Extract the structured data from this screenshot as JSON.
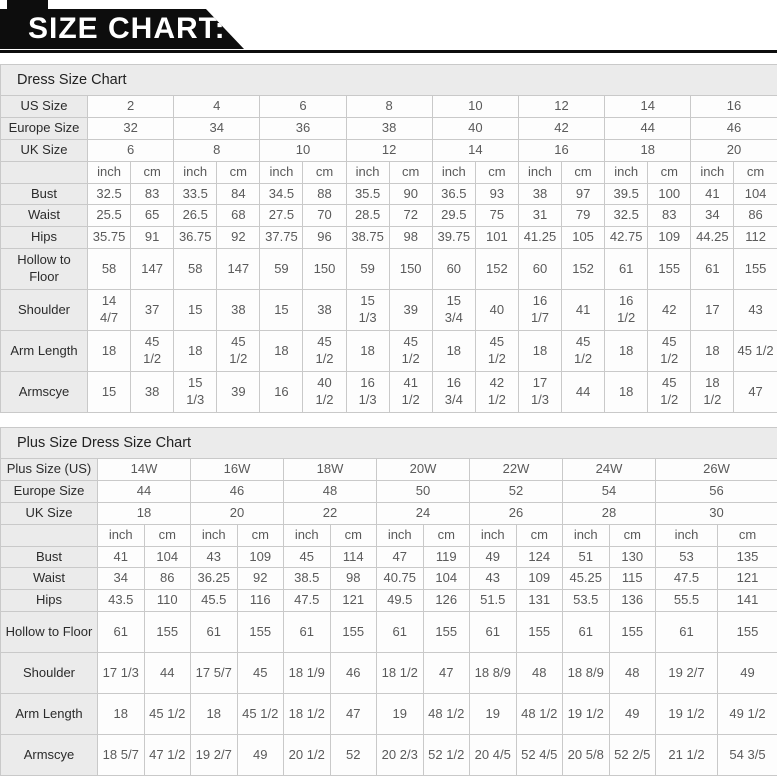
{
  "banner": {
    "title": "SIZE CHART:"
  },
  "colors": {
    "banner_bg": "#0d0d0d",
    "banner_text": "#ffffff",
    "header_bg": "#ebebeb",
    "border": "#c9c9c9",
    "value_text": "#5a5a5a"
  },
  "table1": {
    "title": "Dress Size Chart",
    "units": [
      "inch",
      "cm"
    ],
    "size_rows": [
      {
        "label": "US Size",
        "values": [
          "2",
          "4",
          "6",
          "8",
          "10",
          "12",
          "14",
          "16"
        ]
      },
      {
        "label": "Europe Size",
        "values": [
          "32",
          "34",
          "36",
          "38",
          "40",
          "42",
          "44",
          "46"
        ]
      },
      {
        "label": "UK Size",
        "values": [
          "6",
          "8",
          "10",
          "12",
          "14",
          "16",
          "18",
          "20"
        ]
      }
    ],
    "measure_rows": [
      {
        "label": "Bust",
        "tall": false,
        "values": [
          "32.5",
          "83",
          "33.5",
          "84",
          "34.5",
          "88",
          "35.5",
          "90",
          "36.5",
          "93",
          "38",
          "97",
          "39.5",
          "100",
          "41",
          "104"
        ]
      },
      {
        "label": "Waist",
        "tall": false,
        "values": [
          "25.5",
          "65",
          "26.5",
          "68",
          "27.5",
          "70",
          "28.5",
          "72",
          "29.5",
          "75",
          "31",
          "79",
          "32.5",
          "83",
          "34",
          "86"
        ]
      },
      {
        "label": "Hips",
        "tall": false,
        "values": [
          "35.75",
          "91",
          "36.75",
          "92",
          "37.75",
          "96",
          "38.75",
          "98",
          "39.75",
          "101",
          "41.25",
          "105",
          "42.75",
          "109",
          "44.25",
          "112"
        ]
      },
      {
        "label": "Hollow to Floor",
        "tall": true,
        "values": [
          "58",
          "147",
          "58",
          "147",
          "59",
          "150",
          "59",
          "150",
          "60",
          "152",
          "60",
          "152",
          "61",
          "155",
          "61",
          "155"
        ]
      },
      {
        "label": "Shoulder",
        "tall": true,
        "values": [
          "14 4/7",
          "37",
          "15",
          "38",
          "15",
          "38",
          "15 1/3",
          "39",
          "15 3/4",
          "40",
          "16 1/7",
          "41",
          "16 1/2",
          "42",
          "17",
          "43"
        ]
      },
      {
        "label": "Arm Length",
        "tall": true,
        "values": [
          "18",
          "45 1/2",
          "18",
          "45 1/2",
          "18",
          "45 1/2",
          "18",
          "45 1/2",
          "18",
          "45 1/2",
          "18",
          "45 1/2",
          "18",
          "45 1/2",
          "18",
          "45 1/2"
        ]
      },
      {
        "label": "Armscye",
        "tall": true,
        "values": [
          "15",
          "38",
          "15 1/3",
          "39",
          "16",
          "40 1/2",
          "16 1/3",
          "41 1/2",
          "16 3/4",
          "42 1/2",
          "17 1/3",
          "44",
          "18",
          "45 1/2",
          "18 1/2",
          "47"
        ]
      }
    ]
  },
  "table2": {
    "title": "Plus Size Dress Size Chart",
    "units": [
      "inch",
      "cm"
    ],
    "size_rows": [
      {
        "label": "Plus Size (US)",
        "values": [
          "14W",
          "16W",
          "18W",
          "20W",
          "22W",
          "24W",
          "26W"
        ]
      },
      {
        "label": "Europe Size",
        "values": [
          "44",
          "46",
          "48",
          "50",
          "52",
          "54",
          "56"
        ]
      },
      {
        "label": "UK Size",
        "values": [
          "18",
          "20",
          "22",
          "24",
          "26",
          "28",
          "30"
        ]
      }
    ],
    "measure_rows": [
      {
        "label": "Bust",
        "tall": false,
        "values": [
          "41",
          "104",
          "43",
          "109",
          "45",
          "114",
          "47",
          "119",
          "49",
          "124",
          "51",
          "130",
          "53",
          "135"
        ]
      },
      {
        "label": "Waist",
        "tall": false,
        "values": [
          "34",
          "86",
          "36.25",
          "92",
          "38.5",
          "98",
          "40.75",
          "104",
          "43",
          "109",
          "45.25",
          "115",
          "47.5",
          "121"
        ]
      },
      {
        "label": "Hips",
        "tall": false,
        "values": [
          "43.5",
          "110",
          "45.5",
          "116",
          "47.5",
          "121",
          "49.5",
          "126",
          "51.5",
          "131",
          "53.5",
          "136",
          "55.5",
          "141"
        ]
      },
      {
        "label": "Hollow to Floor",
        "tall": true,
        "values": [
          "61",
          "155",
          "61",
          "155",
          "61",
          "155",
          "61",
          "155",
          "61",
          "155",
          "61",
          "155",
          "61",
          "155"
        ]
      },
      {
        "label": "Shoulder",
        "tall": true,
        "values": [
          "17 1/3",
          "44",
          "17 5/7",
          "45",
          "18 1/9",
          "46",
          "18 1/2",
          "47",
          "18 8/9",
          "48",
          "18 8/9",
          "48",
          "19 2/7",
          "49"
        ]
      },
      {
        "label": "Arm Length",
        "tall": true,
        "values": [
          "18",
          "45 1/2",
          "18",
          "45 1/2",
          "18 1/2",
          "47",
          "19",
          "48 1/2",
          "19",
          "48 1/2",
          "19 1/2",
          "49",
          "19 1/2",
          "49 1/2"
        ]
      },
      {
        "label": "Armscye",
        "tall": true,
        "values": [
          "18 5/7",
          "47 1/2",
          "19 2/7",
          "49",
          "20 1/2",
          "52",
          "20 2/3",
          "52 1/2",
          "20 4/5",
          "52 4/5",
          "20 5/8",
          "52 2/5",
          "21 1/2",
          "54 3/5"
        ]
      }
    ]
  }
}
